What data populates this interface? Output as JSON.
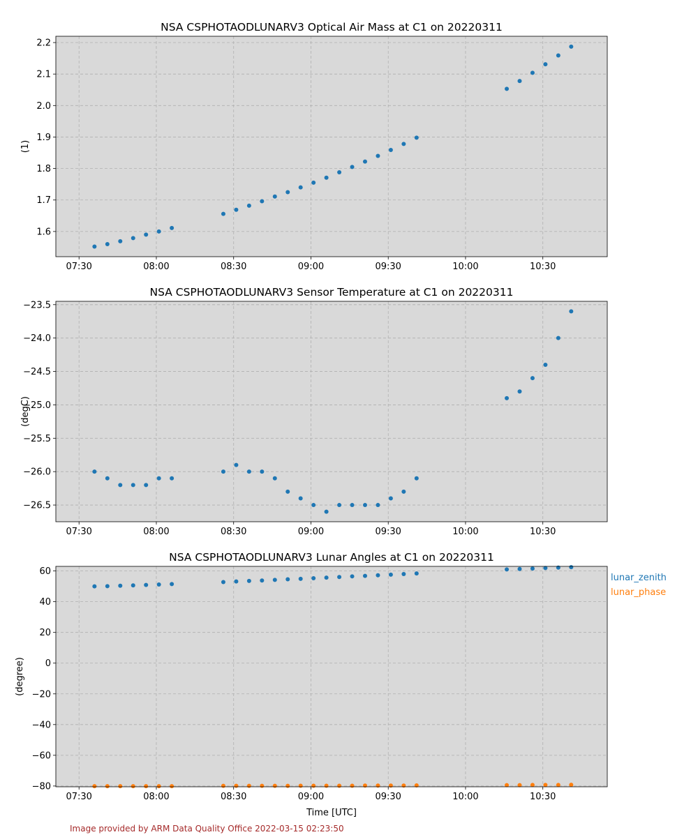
{
  "footer": "Image provided by ARM Data Quality Office 2022-03-15 02:23:50",
  "chart_data": [
    {
      "type": "scatter",
      "title": "NSA CSPHOTAODLUNARV3 Optical Air Mass at C1 on 20220311",
      "xlabel": "",
      "ylabel": "(1)",
      "xlim": [
        "07:21",
        "10:55"
      ],
      "ylim": [
        1.52,
        2.22
      ],
      "x_ticks": [
        "07:30",
        "08:00",
        "08:30",
        "09:00",
        "09:30",
        "10:00",
        "10:30"
      ],
      "y_ticks": [
        "1.6",
        "1.7",
        "1.8",
        "1.9",
        "2.0",
        "2.1",
        "2.2"
      ],
      "y_tick_values": [
        1.6,
        1.7,
        1.8,
        1.9,
        2.0,
        2.1,
        2.2
      ],
      "grid": true,
      "series": [
        {
          "name": "",
          "color": "#1f77b4",
          "x": [
            "07:36",
            "07:41",
            "07:46",
            "07:51",
            "07:56",
            "08:01",
            "08:06",
            "08:26",
            "08:31",
            "08:36",
            "08:41",
            "08:46",
            "08:51",
            "08:56",
            "09:01",
            "09:06",
            "09:11",
            "09:16",
            "09:21",
            "09:26",
            "09:31",
            "09:36",
            "09:41",
            "10:16",
            "10:21",
            "10:26",
            "10:31",
            "10:36",
            "10:41"
          ],
          "y": [
            1.552,
            1.56,
            1.569,
            1.579,
            1.59,
            1.6,
            1.611,
            1.656,
            1.669,
            1.682,
            1.696,
            1.711,
            1.725,
            1.74,
            1.755,
            1.771,
            1.788,
            1.805,
            1.822,
            1.84,
            1.859,
            1.878,
            1.898,
            2.053,
            2.078,
            2.104,
            2.131,
            2.159,
            2.187
          ]
        }
      ]
    },
    {
      "type": "scatter",
      "title": "NSA CSPHOTAODLUNARV3 Sensor Temperature at C1 on 20220311",
      "xlabel": "",
      "ylabel": "(degC)",
      "xlim": [
        "07:21",
        "10:55"
      ],
      "ylim": [
        -26.75,
        -23.45
      ],
      "x_ticks": [
        "07:30",
        "08:00",
        "08:30",
        "09:00",
        "09:30",
        "10:00",
        "10:30"
      ],
      "y_ticks": [
        "−26.5",
        "−26.0",
        "−25.5",
        "−25.0",
        "−24.5",
        "−24.0",
        "−23.5"
      ],
      "y_tick_values": [
        -26.5,
        -26.0,
        -25.5,
        -25.0,
        -24.5,
        -24.0,
        -23.5
      ],
      "grid": true,
      "series": [
        {
          "name": "",
          "color": "#1f77b4",
          "x": [
            "07:36",
            "07:41",
            "07:46",
            "07:51",
            "07:56",
            "08:01",
            "08:06",
            "08:26",
            "08:31",
            "08:36",
            "08:41",
            "08:46",
            "08:51",
            "08:56",
            "09:01",
            "09:06",
            "09:11",
            "09:16",
            "09:21",
            "09:26",
            "09:31",
            "09:36",
            "09:41",
            "10:16",
            "10:21",
            "10:26",
            "10:31",
            "10:36",
            "10:41"
          ],
          "y": [
            -26.0,
            -26.1,
            -26.2,
            -26.2,
            -26.2,
            -26.1,
            -26.1,
            -26.0,
            -25.9,
            -26.0,
            -26.0,
            -26.1,
            -26.3,
            -26.4,
            -26.5,
            -26.6,
            -26.5,
            -26.5,
            -26.5,
            -26.5,
            -26.4,
            -26.3,
            -26.1,
            -24.9,
            -24.8,
            -24.6,
            -24.4,
            -24.0,
            -23.6
          ]
        }
      ]
    },
    {
      "type": "scatter",
      "title": "NSA CSPHOTAODLUNARV3 Lunar Angles at C1 on 20220311",
      "xlabel": "Time [UTC]",
      "ylabel": "(degree)",
      "xlim": [
        "07:21",
        "10:55"
      ],
      "ylim": [
        -80.5,
        63
      ],
      "x_ticks": [
        "07:30",
        "08:00",
        "08:30",
        "09:00",
        "09:30",
        "10:00",
        "10:30"
      ],
      "y_ticks": [
        "−80",
        "−60",
        "−40",
        "−20",
        "0",
        "20",
        "40",
        "60"
      ],
      "y_tick_values": [
        -80,
        -60,
        -40,
        -20,
        0,
        20,
        40,
        60
      ],
      "grid": true,
      "legend": "outside-right-top",
      "series": [
        {
          "name": "lunar_zenith",
          "color": "#1f77b4",
          "x": [
            "07:36",
            "07:41",
            "07:46",
            "07:51",
            "07:56",
            "08:01",
            "08:06",
            "08:26",
            "08:31",
            "08:36",
            "08:41",
            "08:46",
            "08:51",
            "08:56",
            "09:01",
            "09:06",
            "09:11",
            "09:16",
            "09:21",
            "09:26",
            "09:31",
            "09:36",
            "09:41",
            "10:16",
            "10:21",
            "10:26",
            "10:31",
            "10:36",
            "10:41"
          ],
          "y": [
            50.0,
            50.1,
            50.4,
            50.6,
            50.9,
            51.2,
            51.5,
            52.8,
            53.2,
            53.5,
            53.8,
            54.2,
            54.6,
            54.9,
            55.3,
            55.7,
            56.1,
            56.5,
            56.8,
            57.2,
            57.6,
            58.0,
            58.4,
            61.0,
            61.3,
            61.6,
            61.9,
            62.2,
            62.5
          ]
        },
        {
          "name": "lunar_phase",
          "color": "#ff7f0e",
          "x": [
            "07:36",
            "07:41",
            "07:46",
            "07:51",
            "07:56",
            "08:01",
            "08:06",
            "08:26",
            "08:31",
            "08:36",
            "08:41",
            "08:46",
            "08:51",
            "08:56",
            "09:01",
            "09:06",
            "09:11",
            "09:16",
            "09:21",
            "09:26",
            "09:31",
            "09:36",
            "09:41",
            "10:16",
            "10:21",
            "10:26",
            "10:31",
            "10:36",
            "10:41"
          ],
          "y": [
            -80.1,
            -80.1,
            -80.1,
            -80.1,
            -80.1,
            -80.1,
            -80.1,
            -79.9,
            -79.9,
            -79.9,
            -79.9,
            -79.9,
            -79.9,
            -79.8,
            -79.8,
            -79.8,
            -79.8,
            -79.8,
            -79.7,
            -79.7,
            -79.7,
            -79.7,
            -79.6,
            -79.4,
            -79.4,
            -79.3,
            -79.3,
            -79.3,
            -79.2
          ]
        }
      ]
    }
  ]
}
